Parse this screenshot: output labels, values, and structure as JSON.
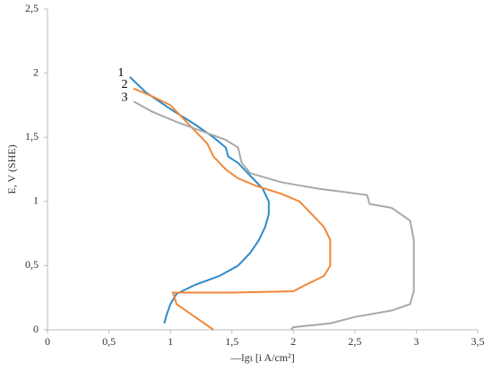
{
  "chart_data": {
    "type": "line",
    "x_label": "—lgι [i A/cm²]",
    "y_label": "E, V (SHE)",
    "xlim": [
      0,
      3.5
    ],
    "xticks": [
      0,
      {
        "value": 0.5,
        "label": "0,5"
      },
      1,
      {
        "value": 1.5,
        "label": "1,5"
      },
      2,
      {
        "value": 2.5,
        "label": "2,5"
      },
      3,
      {
        "value": 3.5,
        "label": "3,5"
      }
    ],
    "ylim": [
      0,
      2.5
    ],
    "yticks": [
      0,
      {
        "value": 0.5,
        "label": "0,5"
      },
      1,
      {
        "value": 1.5,
        "label": "1,5"
      },
      2,
      {
        "value": 2.5,
        "label": "2,5"
      }
    ],
    "grid": false,
    "series": [
      {
        "name": "1",
        "color": "#2e8bc9",
        "x": [
          0.67,
          0.8,
          1.0,
          1.2,
          1.35,
          1.45,
          1.47,
          1.55,
          1.65,
          1.75,
          1.8,
          1.8,
          1.77,
          1.72,
          1.65,
          1.55,
          1.4,
          1.2,
          1.05,
          1.0,
          0.97,
          0.95
        ],
        "values": [
          1.97,
          1.85,
          1.72,
          1.6,
          1.5,
          1.42,
          1.35,
          1.3,
          1.2,
          1.1,
          1.0,
          0.9,
          0.8,
          0.7,
          0.6,
          0.5,
          0.42,
          0.35,
          0.28,
          0.2,
          0.12,
          0.05
        ]
      },
      {
        "name": "2",
        "color": "#f0883a",
        "x": [
          0.7,
          0.85,
          1.0,
          1.1,
          1.2,
          1.3,
          1.35,
          1.45,
          1.55,
          1.7,
          1.9,
          2.05,
          2.15,
          2.25,
          2.3,
          2.3,
          2.3,
          2.25,
          2.1,
          2.0,
          1.5,
          1.02,
          1.05,
          1.2,
          1.35
        ],
        "values": [
          1.88,
          1.82,
          1.75,
          1.65,
          1.55,
          1.45,
          1.35,
          1.25,
          1.18,
          1.12,
          1.06,
          1.0,
          0.9,
          0.8,
          0.7,
          0.6,
          0.5,
          0.42,
          0.35,
          0.3,
          0.29,
          0.29,
          0.2,
          0.1,
          0.0
        ]
      },
      {
        "name": "3",
        "color": "#a9a9a9",
        "x": [
          0.7,
          0.85,
          1.05,
          1.25,
          1.45,
          1.55,
          1.58,
          1.65,
          1.9,
          2.2,
          2.6,
          2.62,
          2.8,
          2.95,
          2.98,
          2.98,
          2.98,
          2.95,
          2.8,
          2.5,
          2.3,
          2.0,
          1.98
        ],
        "values": [
          1.78,
          1.7,
          1.62,
          1.55,
          1.48,
          1.42,
          1.3,
          1.22,
          1.15,
          1.1,
          1.05,
          0.98,
          0.95,
          0.85,
          0.7,
          0.5,
          0.3,
          0.2,
          0.15,
          0.1,
          0.05,
          0.02,
          0.0
        ]
      }
    ]
  }
}
